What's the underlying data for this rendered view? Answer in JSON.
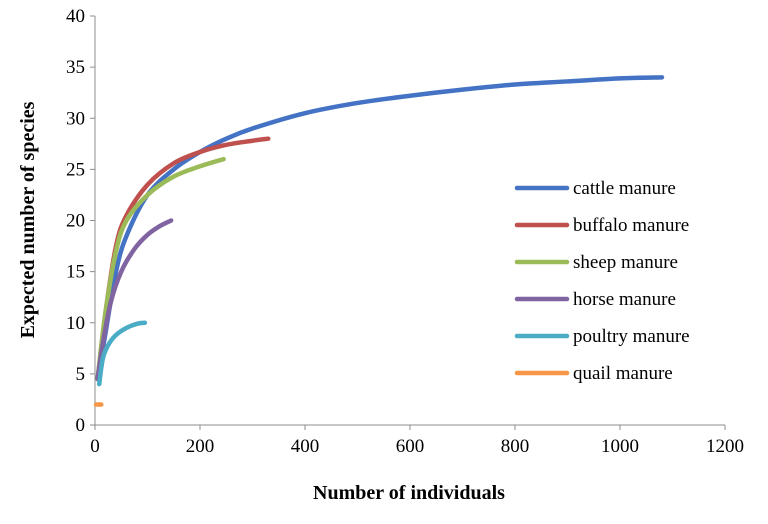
{
  "chart_data": {
    "type": "line",
    "title": "",
    "xlabel": "Number of individuals",
    "ylabel": "Expected number of species",
    "xlim": [
      0,
      1200
    ],
    "ylim": [
      0,
      40
    ],
    "x_ticks": [
      0,
      200,
      400,
      600,
      800,
      1000,
      1200
    ],
    "y_ticks": [
      0,
      5,
      10,
      15,
      20,
      25,
      30,
      35,
      40
    ],
    "grid": false,
    "legend_position": "right",
    "series": [
      {
        "name": "cattle manure",
        "color": "#4472C4",
        "points": [
          [
            5,
            4.5
          ],
          [
            20,
            9
          ],
          [
            40,
            15
          ],
          [
            60,
            18.5
          ],
          [
            100,
            22.5
          ],
          [
            150,
            25
          ],
          [
            200,
            26.7
          ],
          [
            250,
            28
          ],
          [
            300,
            29
          ],
          [
            400,
            30.5
          ],
          [
            500,
            31.5
          ],
          [
            600,
            32.2
          ],
          [
            700,
            32.8
          ],
          [
            800,
            33.3
          ],
          [
            900,
            33.6
          ],
          [
            1000,
            33.9
          ],
          [
            1080,
            34
          ]
        ]
      },
      {
        "name": "buffalo manure",
        "color": "#C0504D",
        "points": [
          [
            5,
            4.5
          ],
          [
            20,
            11
          ],
          [
            40,
            17.5
          ],
          [
            60,
            20.5
          ],
          [
            100,
            23.5
          ],
          [
            150,
            25.6
          ],
          [
            200,
            26.7
          ],
          [
            250,
            27.4
          ],
          [
            300,
            27.8
          ],
          [
            330,
            28
          ]
        ]
      },
      {
        "name": "sheep manure",
        "color": "#9BBB59",
        "points": [
          [
            5,
            4.5
          ],
          [
            20,
            11
          ],
          [
            40,
            17
          ],
          [
            60,
            20
          ],
          [
            100,
            22.5
          ],
          [
            150,
            24.3
          ],
          [
            200,
            25.3
          ],
          [
            245,
            26
          ]
        ]
      },
      {
        "name": "horse manure",
        "color": "#8064A2",
        "points": [
          [
            5,
            4.5
          ],
          [
            15,
            8
          ],
          [
            30,
            12
          ],
          [
            50,
            15
          ],
          [
            75,
            17.2
          ],
          [
            100,
            18.6
          ],
          [
            125,
            19.5
          ],
          [
            145,
            20
          ]
        ]
      },
      {
        "name": "poultry manure",
        "color": "#4BACC6",
        "points": [
          [
            8,
            4
          ],
          [
            15,
            6.5
          ],
          [
            25,
            7.8
          ],
          [
            40,
            8.8
          ],
          [
            60,
            9.5
          ],
          [
            80,
            9.9
          ],
          [
            95,
            10
          ]
        ]
      },
      {
        "name": "quail manure",
        "color": "#F79646",
        "points": [
          [
            2,
            2
          ],
          [
            12,
            2
          ]
        ]
      }
    ]
  }
}
